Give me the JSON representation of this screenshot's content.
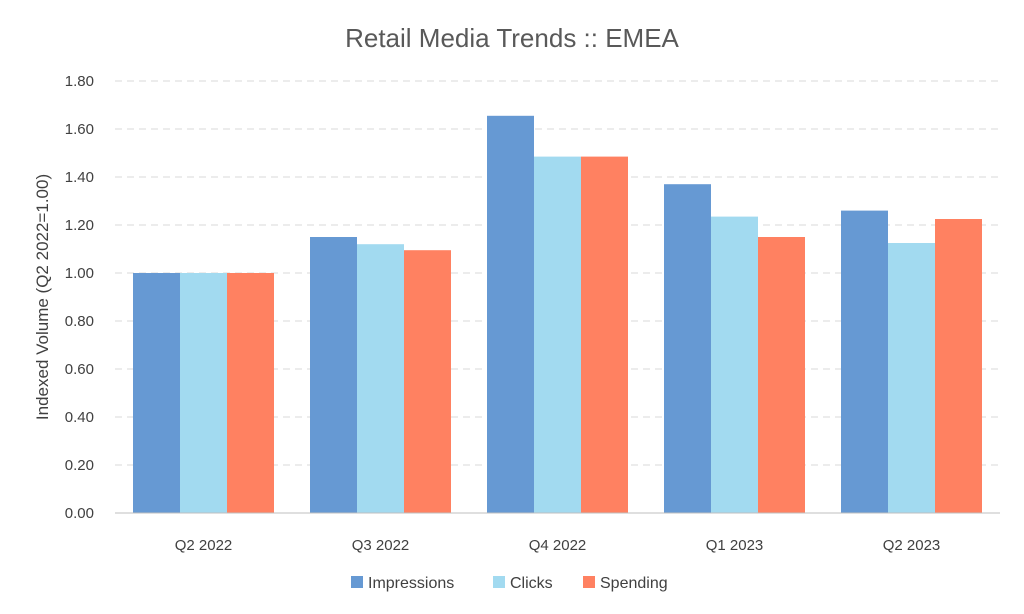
{
  "chart_data": {
    "type": "bar",
    "title": "Retail Media Trends :: EMEA",
    "xlabel": "",
    "ylabel": "Indexed Volume (Q2 2022=1.00)",
    "ylim": [
      0,
      1.8
    ],
    "yticks": [
      "0.00",
      "0.20",
      "0.40",
      "0.60",
      "0.80",
      "1.00",
      "1.20",
      "1.40",
      "1.60",
      "1.80"
    ],
    "ytick_values": [
      0,
      0.2,
      0.4,
      0.6,
      0.8,
      1.0,
      1.2,
      1.4,
      1.6,
      1.8
    ],
    "grid": true,
    "legend_position": "bottom",
    "categories": [
      "Q2 2022",
      "Q3 2022",
      "Q4 2022",
      "Q1 2023",
      "Q2 2023"
    ],
    "series": [
      {
        "name": "Impressions",
        "color": "#6699d3",
        "values": [
          1.0,
          1.15,
          1.655,
          1.37,
          1.26
        ]
      },
      {
        "name": "Clicks",
        "color": "#a2daf0",
        "values": [
          1.0,
          1.12,
          1.485,
          1.235,
          1.125
        ]
      },
      {
        "name": "Spending",
        "color": "#ff8161",
        "values": [
          1.0,
          1.095,
          1.485,
          1.15,
          1.225
        ]
      }
    ]
  }
}
